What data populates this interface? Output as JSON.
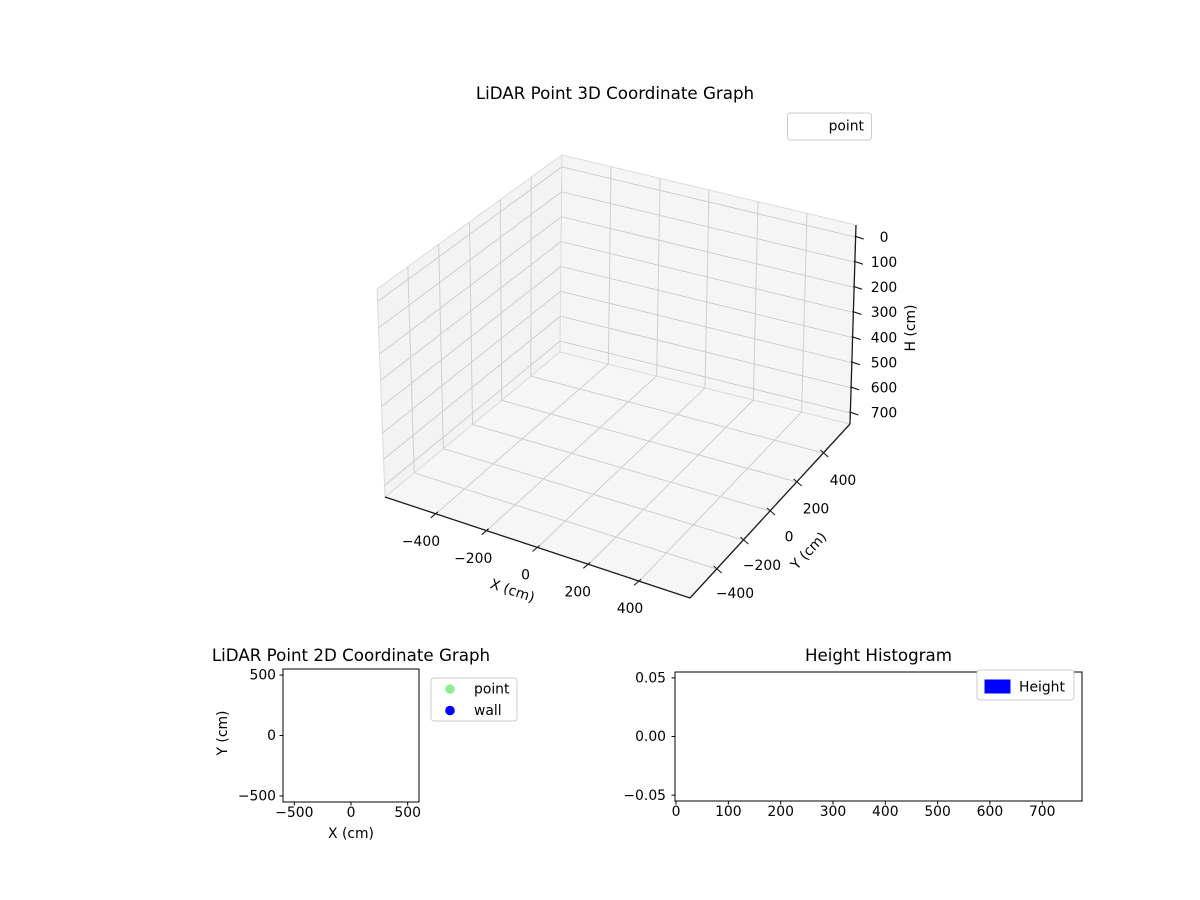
{
  "figure": {
    "background": "#ffffff"
  },
  "chart_data": [
    {
      "id": "lidar_3d",
      "type": "scatter3d",
      "title": "LiDAR Point 3D Coordinate Graph",
      "xlabel": "X (cm)",
      "ylabel": "Y (cm)",
      "zlabel": "H (cm)",
      "xticks": [
        -400,
        -200,
        0,
        200,
        400
      ],
      "yticks": [
        -400,
        -200,
        0,
        200,
        400
      ],
      "zticks": [
        0,
        100,
        200,
        300,
        400,
        500,
        600,
        700
      ],
      "xticklabels": [
        "−400",
        "−200",
        "0",
        "200",
        "400"
      ],
      "yticklabels": [
        "−400",
        "−200",
        "0",
        "200",
        "400"
      ],
      "zticklabels": [
        "0",
        "100",
        "200",
        "300",
        "400",
        "500",
        "600",
        "700"
      ],
      "xlim": [
        -600,
        600
      ],
      "ylim": [
        -600,
        600
      ],
      "zlim": [
        -48,
        744
      ],
      "zaxis_inverted": true,
      "grid": true,
      "legend": {
        "position": "upper-right-outside",
        "entries": [
          {
            "label": "point",
            "marker": "none-visible"
          }
        ]
      },
      "series": [
        {
          "name": "point",
          "points": []
        }
      ]
    },
    {
      "id": "lidar_2d",
      "type": "scatter",
      "title": "LiDAR Point 2D Coordinate Graph",
      "xlabel": "X (cm)",
      "ylabel": "Y (cm)",
      "xticks": [
        -500,
        0,
        500
      ],
      "yticks": [
        500,
        0,
        -500
      ],
      "xticklabels": [
        "−500",
        "0",
        "500"
      ],
      "yticklabels": [
        "500",
        "0",
        "−500"
      ],
      "xlim": [
        -600,
        600
      ],
      "ylim": [
        -550,
        550
      ],
      "grid": false,
      "legend": {
        "position": "outside-right",
        "entries": [
          {
            "label": "point",
            "marker": "circle",
            "color": "#90ee90"
          },
          {
            "label": "wall",
            "marker": "circle",
            "color": "#0000ff"
          }
        ]
      },
      "series": [
        {
          "name": "point",
          "points": []
        },
        {
          "name": "wall",
          "points": []
        }
      ]
    },
    {
      "id": "height_histogram",
      "type": "bar",
      "title": "Height Histogram",
      "xlabel": "",
      "ylabel": "",
      "xticks": [
        0,
        100,
        200,
        300,
        400,
        500,
        600,
        700
      ],
      "yticks": [
        0.05,
        0.0,
        -0.05
      ],
      "xticklabels": [
        "0",
        "100",
        "200",
        "300",
        "400",
        "500",
        "600",
        "700"
      ],
      "yticklabels": [
        "0.05",
        "0.00",
        "−0.05"
      ],
      "xlim": [
        -2,
        776
      ],
      "ylim": [
        -0.055,
        0.055
      ],
      "grid": false,
      "legend": {
        "position": "upper-right",
        "entries": [
          {
            "label": "Height",
            "marker": "rect",
            "color": "#0000ff"
          }
        ]
      },
      "values": []
    }
  ]
}
